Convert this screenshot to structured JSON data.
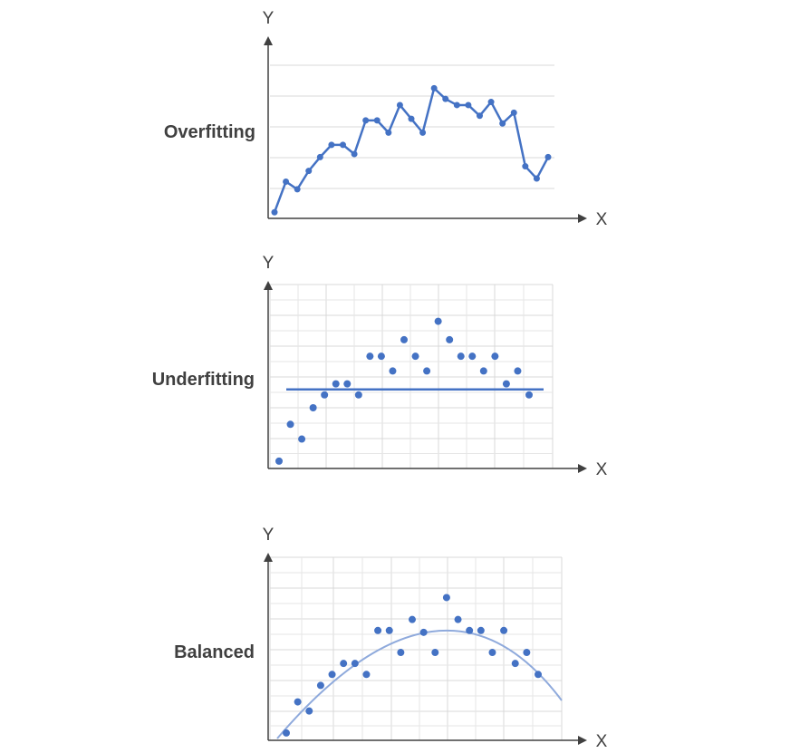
{
  "chart_data": [
    {
      "type": "line",
      "title": "Overfitting",
      "xlabel": "X",
      "ylabel": "Y",
      "grid": "horizontal",
      "ylim": [
        0,
        10
      ],
      "x": [
        0,
        1,
        2,
        3,
        4,
        5,
        6,
        7,
        8,
        9,
        10,
        11,
        12,
        13,
        14,
        15,
        16,
        17,
        18,
        19,
        20,
        21,
        22,
        23,
        24
      ],
      "series": [
        {
          "values": [
            0.4,
            2.4,
            1.9,
            3.1,
            4.0,
            4.8,
            4.8,
            4.2,
            6.4,
            6.4,
            5.6,
            7.4,
            6.5,
            5.6,
            8.5,
            7.8,
            7.4,
            7.4,
            6.7,
            7.6,
            6.2,
            6.9,
            3.4,
            2.6,
            4.0
          ],
          "color": "#4472C4",
          "markers": true
        }
      ]
    },
    {
      "type": "scatter",
      "title": "Underfitting",
      "xlabel": "X",
      "ylabel": "Y",
      "grid": "both",
      "ylim": [
        0,
        10
      ],
      "points": [
        [
          0,
          0.4
        ],
        [
          1,
          2.4
        ],
        [
          2,
          1.6
        ],
        [
          3,
          3.3
        ],
        [
          4,
          4.0
        ],
        [
          5,
          4.6
        ],
        [
          6,
          4.6
        ],
        [
          7,
          4.0
        ],
        [
          8,
          6.1
        ],
        [
          9,
          6.1
        ],
        [
          10,
          5.3
        ],
        [
          11,
          7.0
        ],
        [
          12,
          6.1
        ],
        [
          13,
          5.3
        ],
        [
          14,
          8.0
        ],
        [
          15,
          7.0
        ],
        [
          16,
          6.1
        ],
        [
          17,
          6.1
        ],
        [
          18,
          5.3
        ],
        [
          19,
          6.1
        ],
        [
          20,
          4.6
        ],
        [
          21,
          5.3
        ],
        [
          22,
          4.0
        ]
      ],
      "fit": {
        "type": "linear",
        "y": 4.3,
        "color": "#4472C4"
      },
      "color": "#4472C4"
    },
    {
      "type": "scatter",
      "title": "Balanced",
      "xlabel": "X",
      "ylabel": "Y",
      "grid": "both",
      "ylim": [
        0,
        10
      ],
      "points": [
        [
          0,
          0.4
        ],
        [
          1,
          2.1
        ],
        [
          2,
          1.6
        ],
        [
          3,
          3.0
        ],
        [
          4,
          3.6
        ],
        [
          5,
          4.2
        ],
        [
          6,
          4.2
        ],
        [
          7,
          3.6
        ],
        [
          8,
          6.0
        ],
        [
          9,
          6.0
        ],
        [
          10,
          4.8
        ],
        [
          11,
          6.6
        ],
        [
          12,
          5.9
        ],
        [
          13,
          4.8
        ],
        [
          14,
          7.8
        ],
        [
          15,
          6.6
        ],
        [
          16,
          6.0
        ],
        [
          17,
          6.0
        ],
        [
          18,
          4.8
        ],
        [
          19,
          6.0
        ],
        [
          20,
          4.2
        ],
        [
          21,
          4.8
        ],
        [
          22,
          3.6
        ]
      ],
      "fit": {
        "type": "quadratic",
        "color": "#8FAADC"
      },
      "color": "#4472C4"
    }
  ]
}
